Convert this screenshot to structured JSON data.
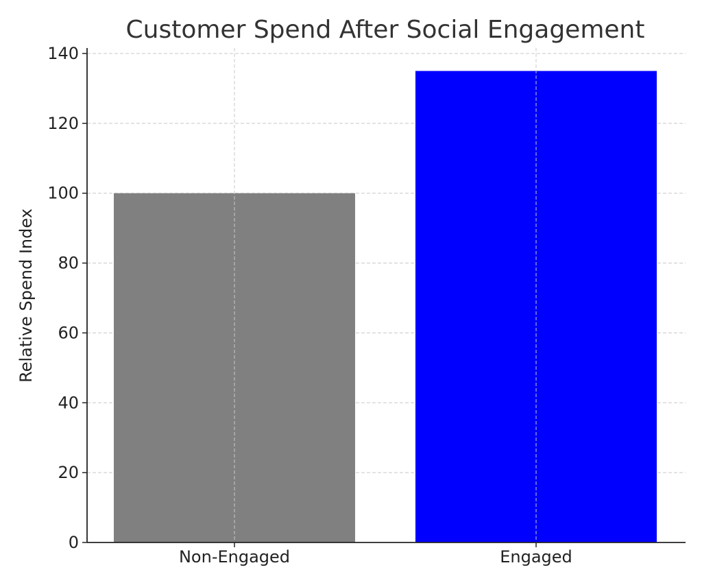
{
  "chart_data": {
    "type": "bar",
    "title": "Customer Spend After Social Engagement",
    "xlabel": "",
    "ylabel": "Relative Spend Index",
    "categories": [
      "Non-Engaged",
      "Engaged"
    ],
    "values": [
      100,
      135
    ],
    "colors": [
      "#808080",
      "#0000ff"
    ],
    "ylim": [
      0,
      140
    ],
    "yticks": [
      0,
      20,
      40,
      60,
      80,
      100,
      120,
      140
    ],
    "grid": true
  }
}
